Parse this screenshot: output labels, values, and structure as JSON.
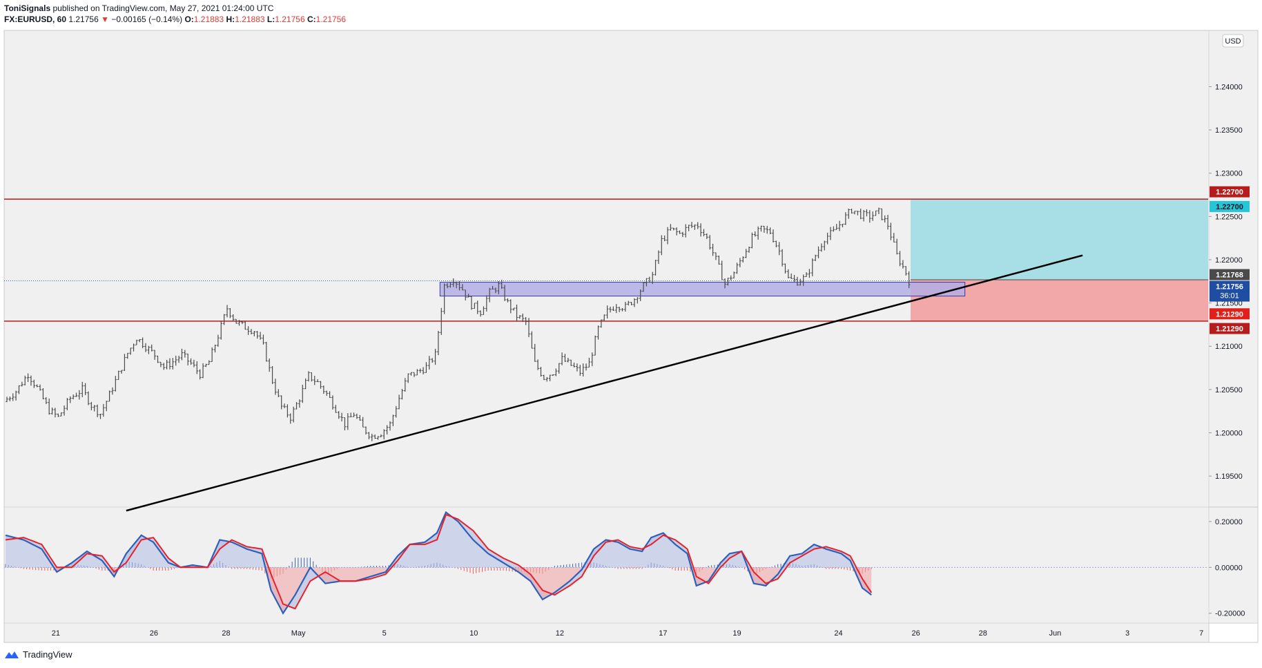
{
  "header": {
    "author": "ToniSignals",
    "published": "published on TradingView.com, May 27, 2021 01:24:00 UTC",
    "symbol": "FX:EURUSD, 60",
    "last": "1.21756",
    "change": "−0.00165 (−0.14%)",
    "o_label": "O:",
    "o_value": "1.21883",
    "h_label": "H:",
    "h_value": "1.21883",
    "l_label": "L:",
    "l_value": "1.21756",
    "c_label": "C:",
    "c_value": "1.21756"
  },
  "currency_badge": "USD",
  "footer": {
    "brand": "TradingView",
    "icon": "tradingview-logo-icon"
  },
  "colors": {
    "background": "#f0f0f0",
    "candle": "#4a4a4a",
    "resistance": "#b71c1c",
    "profit_zone": "#a8dfe6",
    "loss_zone": "#f2a8a8",
    "supply_box": "#b3aee6",
    "trendline": "#000000",
    "macd_line": "#2f5fb8",
    "signal_line": "#e8202a",
    "hist_up": "#3b64b6",
    "hist_down": "#e85a5a"
  },
  "chart_data": [
    {
      "type": "candlestick",
      "symbol": "EURUSD",
      "timeframe": "60",
      "ylim": [
        1.1915,
        1.2465
      ],
      "y_ticks": [
        "1.24000",
        "1.23500",
        "1.23000",
        "1.22500",
        "1.22000",
        "1.21500",
        "1.21000",
        "1.20500",
        "1.20000",
        "1.19500"
      ],
      "x_ticks": [
        "21",
        "26",
        "28",
        "May",
        "5",
        "10",
        "12",
        "17",
        "19",
        "24",
        "26",
        "28",
        "Jun",
        "3",
        "7"
      ],
      "price_path": [
        [
          0,
          1.2036
        ],
        [
          4,
          1.2048
        ],
        [
          8,
          1.2068
        ],
        [
          11,
          1.2052
        ],
        [
          15,
          1.2026
        ],
        [
          18,
          1.2018
        ],
        [
          22,
          1.204
        ],
        [
          26,
          1.205
        ],
        [
          29,
          1.2032
        ],
        [
          32,
          1.2022
        ],
        [
          35,
          1.2044
        ],
        [
          38,
          1.2068
        ],
        [
          41,
          1.2092
        ],
        [
          44,
          1.211
        ],
        [
          47,
          1.21
        ],
        [
          50,
          1.209
        ],
        [
          53,
          1.2076
        ],
        [
          56,
          1.2082
        ],
        [
          59,
          1.209
        ],
        [
          62,
          1.208
        ],
        [
          65,
          1.2068
        ],
        [
          68,
          1.2082
        ],
        [
          71,
          1.2112
        ],
        [
          74,
          1.2144
        ],
        [
          77,
          1.2128
        ],
        [
          80,
          1.2122
        ],
        [
          83,
          1.2118
        ],
        [
          86,
          1.21
        ],
        [
          89,
          1.206
        ],
        [
          92,
          1.203
        ],
        [
          95,
          1.2018
        ],
        [
          98,
          1.204
        ],
        [
          101,
          1.2066
        ],
        [
          104,
          1.2058
        ],
        [
          107,
          1.2045
        ],
        [
          110,
          1.2028
        ],
        [
          113,
          1.201
        ],
        [
          116,
          1.2022
        ],
        [
          119,
          1.2005
        ],
        [
          122,
          1.1996
        ],
        [
          125,
          1.2
        ],
        [
          128,
          1.201
        ],
        [
          131,
          1.204
        ],
        [
          134,
          1.2066
        ],
        [
          137,
          1.207
        ],
        [
          140,
          1.2076
        ],
        [
          143,
          1.209
        ],
        [
          146,
          1.217
        ],
        [
          149,
          1.2178
        ],
        [
          152,
          1.2166
        ],
        [
          155,
          1.2148
        ],
        [
          158,
          1.214
        ],
        [
          161,
          1.2162
        ],
        [
          164,
          1.217
        ],
        [
          167,
          1.215
        ],
        [
          170,
          1.2135
        ],
        [
          173,
          1.2128
        ],
        [
          176,
          1.208
        ],
        [
          179,
          1.2064
        ],
        [
          182,
          1.207
        ],
        [
          185,
          1.2085
        ],
        [
          188,
          1.2078
        ],
        [
          191,
          1.207
        ],
        [
          194,
          1.208
        ],
        [
          197,
          1.212
        ],
        [
          200,
          1.214
        ],
        [
          203,
          1.2148
        ],
        [
          206,
          1.2145
        ],
        [
          209,
          1.2155
        ],
        [
          212,
          1.217
        ],
        [
          215,
          1.2182
        ],
        [
          218,
          1.2222
        ],
        [
          221,
          1.2235
        ],
        [
          224,
          1.223
        ],
        [
          227,
          1.2238
        ],
        [
          230,
          1.224
        ],
        [
          233,
          1.2225
        ],
        [
          236,
          1.22
        ],
        [
          239,
          1.2172
        ],
        [
          242,
          1.2185
        ],
        [
          245,
          1.2205
        ],
        [
          248,
          1.2225
        ],
        [
          251,
          1.2235
        ],
        [
          254,
          1.2232
        ],
        [
          257,
          1.221
        ],
        [
          260,
          1.2178
        ],
        [
          263,
          1.2175
        ],
        [
          266,
          1.218
        ],
        [
          269,
          1.2205
        ],
        [
          272,
          1.2225
        ],
        [
          275,
          1.2232
        ],
        [
          278,
          1.2245
        ],
        [
          281,
          1.2258
        ],
        [
          284,
          1.2252
        ],
        [
          287,
          1.225
        ],
        [
          290,
          1.2255
        ],
        [
          293,
          1.224
        ],
        [
          296,
          1.2205
        ],
        [
          299,
          1.2185
        ],
        [
          300,
          1.21756
        ]
      ],
      "period_count": 300,
      "resistance_lines": [
        1.227,
        1.2129
      ],
      "supply_zone": {
        "from": 1.2158,
        "to": 1.2174,
        "start_index": 144,
        "end_index": 318
      },
      "trendline": {
        "start": [
          40,
          1.191
        ],
        "end": [
          357,
          1.2205
        ]
      },
      "position": {
        "entry": 1.21768,
        "target": 1.227,
        "stop": 1.2129,
        "start_index": 300,
        "end_index": 400
      },
      "price_labels": {
        "resistance_upper": "1.22700",
        "target": "1.22700",
        "entry": "1.21768",
        "last_price": "1.21756",
        "countdown": "36:01",
        "stop": "1.21290",
        "resistance_lower": "1.21290"
      }
    },
    {
      "type": "macd",
      "ylim": [
        -0.24,
        0.26
      ],
      "y_ticks": [
        "0.20000",
        "0.00000",
        "-0.20000"
      ],
      "series": [
        {
          "role": "macd",
          "points": [
            [
              0,
              0.14
            ],
            [
              6,
              0.12
            ],
            [
              12,
              0.08
            ],
            [
              17,
              -0.02
            ],
            [
              22,
              0.02
            ],
            [
              27,
              0.07
            ],
            [
              32,
              0.03
            ],
            [
              36,
              -0.04
            ],
            [
              40,
              0.06
            ],
            [
              45,
              0.14
            ],
            [
              49,
              0.11
            ],
            [
              54,
              0.02
            ],
            [
              58,
              0.0
            ],
            [
              62,
              0.01
            ],
            [
              67,
              0.0
            ],
            [
              71,
              0.12
            ],
            [
              75,
              0.11
            ],
            [
              80,
              0.08
            ],
            [
              85,
              0.06
            ],
            [
              88,
              -0.1
            ],
            [
              92,
              -0.2
            ],
            [
              96,
              -0.12
            ],
            [
              101,
              0.0
            ],
            [
              106,
              -0.07
            ],
            [
              111,
              -0.06
            ],
            [
              116,
              -0.06
            ],
            [
              121,
              -0.04
            ],
            [
              126,
              -0.02
            ],
            [
              130,
              0.05
            ],
            [
              134,
              0.1
            ],
            [
              139,
              0.11
            ],
            [
              143,
              0.15
            ],
            [
              146,
              0.24
            ],
            [
              150,
              0.2
            ],
            [
              155,
              0.12
            ],
            [
              160,
              0.06
            ],
            [
              165,
              0.02
            ],
            [
              170,
              -0.02
            ],
            [
              174,
              -0.06
            ],
            [
              178,
              -0.14
            ],
            [
              182,
              -0.11
            ],
            [
              187,
              -0.06
            ],
            [
              191,
              -0.01
            ],
            [
              195,
              0.08
            ],
            [
              199,
              0.12
            ],
            [
              203,
              0.11
            ],
            [
              207,
              0.08
            ],
            [
              211,
              0.07
            ],
            [
              214,
              0.13
            ],
            [
              218,
              0.15
            ],
            [
              222,
              0.1
            ],
            [
              226,
              0.06
            ],
            [
              229,
              -0.08
            ],
            [
              233,
              -0.06
            ],
            [
              237,
              0.02
            ],
            [
              240,
              0.06
            ],
            [
              244,
              0.07
            ],
            [
              248,
              -0.07
            ],
            [
              252,
              -0.08
            ],
            [
              256,
              -0.03
            ],
            [
              260,
              0.05
            ],
            [
              264,
              0.06
            ],
            [
              268,
              0.1
            ],
            [
              272,
              0.08
            ],
            [
              277,
              0.06
            ],
            [
              280,
              0.03
            ],
            [
              284,
              -0.09
            ],
            [
              287,
              -0.12
            ]
          ]
        },
        {
          "role": "signal",
          "points": [
            [
              0,
              0.12
            ],
            [
              6,
              0.13
            ],
            [
              12,
              0.1
            ],
            [
              17,
              0.0
            ],
            [
              22,
              0.0
            ],
            [
              27,
              0.06
            ],
            [
              32,
              0.05
            ],
            [
              36,
              -0.02
            ],
            [
              40,
              0.02
            ],
            [
              45,
              0.12
            ],
            [
              49,
              0.13
            ],
            [
              54,
              0.04
            ],
            [
              58,
              0.0
            ],
            [
              62,
              0.0
            ],
            [
              67,
              0.0
            ],
            [
              71,
              0.08
            ],
            [
              75,
              0.12
            ],
            [
              80,
              0.09
            ],
            [
              85,
              0.08
            ],
            [
              88,
              -0.03
            ],
            [
              92,
              -0.16
            ],
            [
              96,
              -0.18
            ],
            [
              101,
              -0.06
            ],
            [
              106,
              -0.02
            ],
            [
              111,
              -0.06
            ],
            [
              116,
              -0.06
            ],
            [
              121,
              -0.05
            ],
            [
              126,
              -0.03
            ],
            [
              130,
              0.03
            ],
            [
              134,
              0.1
            ],
            [
              139,
              0.1
            ],
            [
              143,
              0.12
            ],
            [
              146,
              0.23
            ],
            [
              150,
              0.21
            ],
            [
              155,
              0.16
            ],
            [
              160,
              0.08
            ],
            [
              165,
              0.04
            ],
            [
              170,
              0.01
            ],
            [
              174,
              -0.03
            ],
            [
              178,
              -0.1
            ],
            [
              182,
              -0.12
            ],
            [
              187,
              -0.08
            ],
            [
              191,
              -0.04
            ],
            [
              195,
              0.05
            ],
            [
              199,
              0.11
            ],
            [
              203,
              0.12
            ],
            [
              207,
              0.09
            ],
            [
              211,
              0.08
            ],
            [
              214,
              0.1
            ],
            [
              218,
              0.14
            ],
            [
              222,
              0.12
            ],
            [
              226,
              0.08
            ],
            [
              229,
              -0.04
            ],
            [
              233,
              -0.07
            ],
            [
              237,
              0.0
            ],
            [
              240,
              0.04
            ],
            [
              244,
              0.07
            ],
            [
              248,
              -0.02
            ],
            [
              252,
              -0.07
            ],
            [
              256,
              -0.05
            ],
            [
              260,
              0.02
            ],
            [
              264,
              0.05
            ],
            [
              268,
              0.08
            ],
            [
              272,
              0.09
            ],
            [
              277,
              0.07
            ],
            [
              280,
              0.05
            ],
            [
              284,
              -0.05
            ],
            [
              287,
              -0.11
            ]
          ]
        }
      ]
    }
  ]
}
